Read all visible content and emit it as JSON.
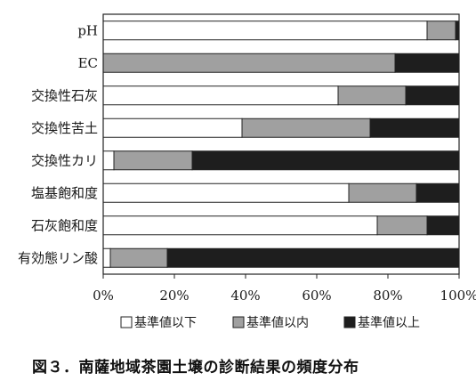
{
  "chart_data": {
    "type": "bar",
    "orientation": "horizontal",
    "stacked": true,
    "categories": [
      "pH",
      "EC",
      "交換性石灰",
      "交換性苦土",
      "交換性カリ",
      "塩基飽和度",
      "石灰飽和度",
      "有効態リン酸"
    ],
    "series": [
      {
        "name": "基準値以下",
        "color": "#ffffff",
        "values": [
          91,
          0,
          66,
          39,
          3,
          69,
          77,
          2
        ]
      },
      {
        "name": "基準値以内",
        "color": "#a0a0a0",
        "values": [
          8,
          82,
          19,
          36,
          22,
          19,
          14,
          16
        ]
      },
      {
        "name": "基準値以上",
        "color": "#1e1e1e",
        "values": [
          1,
          18,
          15,
          25,
          75,
          12,
          9,
          82
        ]
      }
    ],
    "xlim": [
      0,
      100
    ],
    "xticks": [
      "0%",
      "20%",
      "40%",
      "60%",
      "80%",
      "100%"
    ],
    "legend_position": "bottom",
    "grid": false,
    "caption": "図３．南薩地域茶園土壌の診断結果の頻度分布"
  }
}
